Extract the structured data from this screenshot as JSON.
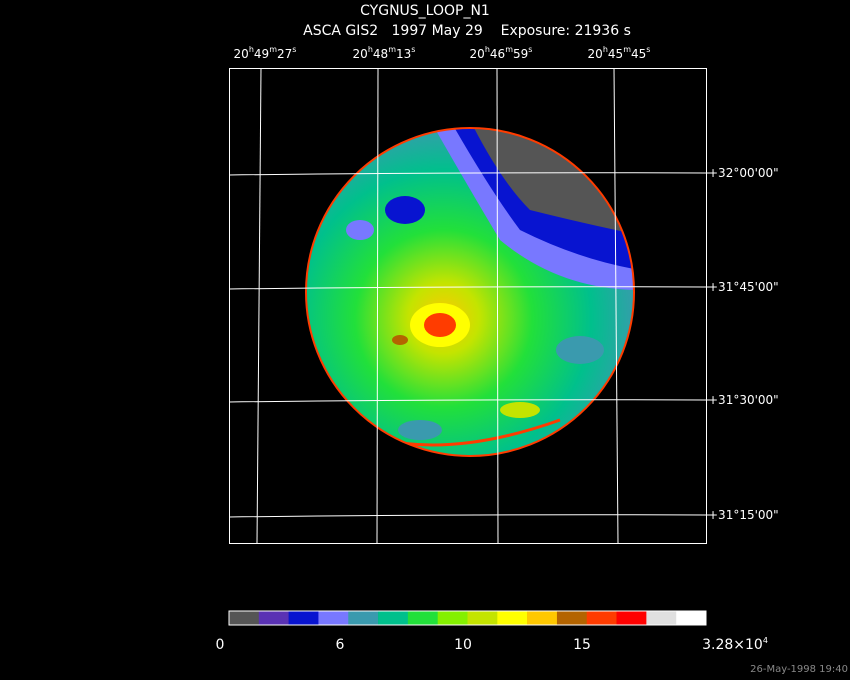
{
  "title": "CYGNUS_LOOP_N1",
  "subtitle": "ASCA GIS2   1997 May 29    Exposure: 21936 s",
  "ra_labels": [
    [
      "20",
      "h",
      "49",
      "m",
      "27",
      "s"
    ],
    [
      "20",
      "h",
      "48",
      "m",
      "13",
      "s"
    ],
    [
      "20",
      "h",
      "46",
      "m",
      "59",
      "s"
    ],
    [
      "20",
      "h",
      "45",
      "m",
      "45",
      "s"
    ]
  ],
  "dec_labels": [
    "+32°00'00\"",
    "+31°45'00\"",
    "+31°30'00\"",
    "+31°15'00\""
  ],
  "colorbar": {
    "colors": [
      "#555555",
      "#5a32b4",
      "#0814d0",
      "#7878ff",
      "#3a9aae",
      "#00c08c",
      "#22e03a",
      "#84f000",
      "#c4e400",
      "#ffff00",
      "#ffc800",
      "#b46400",
      "#ff3c00",
      "#ff0000",
      "#e0e0e0",
      "#ffffff"
    ],
    "labels": [
      [
        "0"
      ],
      [
        "6"
      ],
      [
        "10"
      ],
      [
        "15"
      ],
      [
        "3.28×10",
        "4"
      ]
    ]
  },
  "footer": "26-May-1998 19:40"
}
